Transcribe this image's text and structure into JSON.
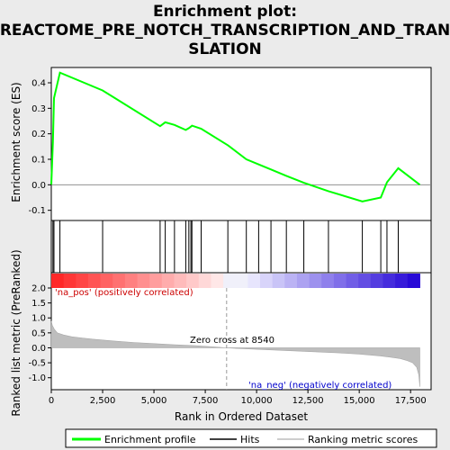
{
  "chart_data": {
    "type": "line",
    "title_line1": "Enrichment plot:",
    "title_line2": "REACTOME_PRE_NOTCH_TRANSCRIPTION_AND_TRAN",
    "title_line3": "SLATION",
    "top_ylabel": "Enrichment score (ES)",
    "bottom_ylabel": "Ranked list metric (PreRanked)",
    "xlabel": "Rank in Ordered Dataset",
    "xlim": [
      0,
      18500
    ],
    "es_ylim": [
      -0.14,
      0.46
    ],
    "metric_ylim": [
      -1.4,
      2.0
    ],
    "x_ticks": [
      0,
      2500,
      5000,
      7500,
      10000,
      12500,
      15000,
      17500
    ],
    "x_tick_labels": [
      "0",
      "2,500",
      "5,000",
      "7,500",
      "10,000",
      "12,500",
      "15,000",
      "17,500"
    ],
    "es_ticks": [
      -0.1,
      0.0,
      0.1,
      0.2,
      0.3,
      0.4
    ],
    "es_tick_labels": [
      "-0.1",
      "0.0",
      "0.1",
      "0.2",
      "0.3",
      "0.4"
    ],
    "metric_ticks": [
      -1.0,
      -0.5,
      0.0,
      0.5,
      1.0,
      1.5,
      2.0
    ],
    "metric_tick_labels": [
      "-1.0",
      "-0.5",
      "0.0",
      "0.5",
      "1.0",
      "1.5",
      "2.0"
    ],
    "zero_cross_label": "Zero cross at 8540",
    "zero_cross_x": 8540,
    "pos_label": "'na_pos' (positively correlated)",
    "neg_label": "'na_neg' (negatively correlated)",
    "hits": [
      80,
      130,
      420,
      2500,
      5300,
      5550,
      6000,
      6550,
      6700,
      6800,
      6850,
      7300,
      8600,
      9500,
      10100,
      10700,
      11450,
      12300,
      13500,
      15150,
      16050,
      16350,
      16900
    ],
    "series": [
      {
        "name": "Enrichment profile",
        "color": "#00ff00",
        "x": [
          0,
          80,
          130,
          420,
          2500,
          5300,
          5550,
          6000,
          6550,
          6700,
          6800,
          6850,
          7300,
          8600,
          9500,
          10100,
          10700,
          11450,
          12300,
          13500,
          15150,
          16050,
          16350,
          16900,
          17950
        ],
        "y": [
          0.0,
          0.17,
          0.34,
          0.44,
          0.37,
          0.23,
          0.245,
          0.235,
          0.215,
          0.222,
          0.228,
          0.232,
          0.22,
          0.155,
          0.1,
          0.08,
          0.06,
          0.035,
          0.008,
          -0.025,
          -0.065,
          -0.05,
          0.01,
          0.065,
          0.0
        ]
      }
    ],
    "metric_curve": {
      "x": [
        0,
        50,
        150,
        300,
        600,
        1000,
        1500,
        2000,
        3000,
        4000,
        5000,
        6000,
        7000,
        8000,
        8540,
        9000,
        10000,
        11000,
        12000,
        13000,
        14000,
        15000,
        15500,
        16000,
        16500,
        17000,
        17300,
        17600,
        17800,
        17900,
        17950
      ],
      "y": [
        0.9,
        0.75,
        0.62,
        0.5,
        0.43,
        0.37,
        0.33,
        0.29,
        0.23,
        0.18,
        0.14,
        0.1,
        0.07,
        0.03,
        0.0,
        -0.02,
        -0.05,
        -0.08,
        -0.11,
        -0.14,
        -0.17,
        -0.21,
        -0.24,
        -0.27,
        -0.31,
        -0.36,
        -0.42,
        -0.5,
        -0.65,
        -0.9,
        -1.3
      ]
    },
    "legend": [
      {
        "label": "Enrichment profile",
        "color": "#00ff00"
      },
      {
        "label": "Hits",
        "color": "#000000"
      },
      {
        "label": "Ranking metric scores",
        "color": "#bebebe"
      }
    ],
    "grid": false
  }
}
